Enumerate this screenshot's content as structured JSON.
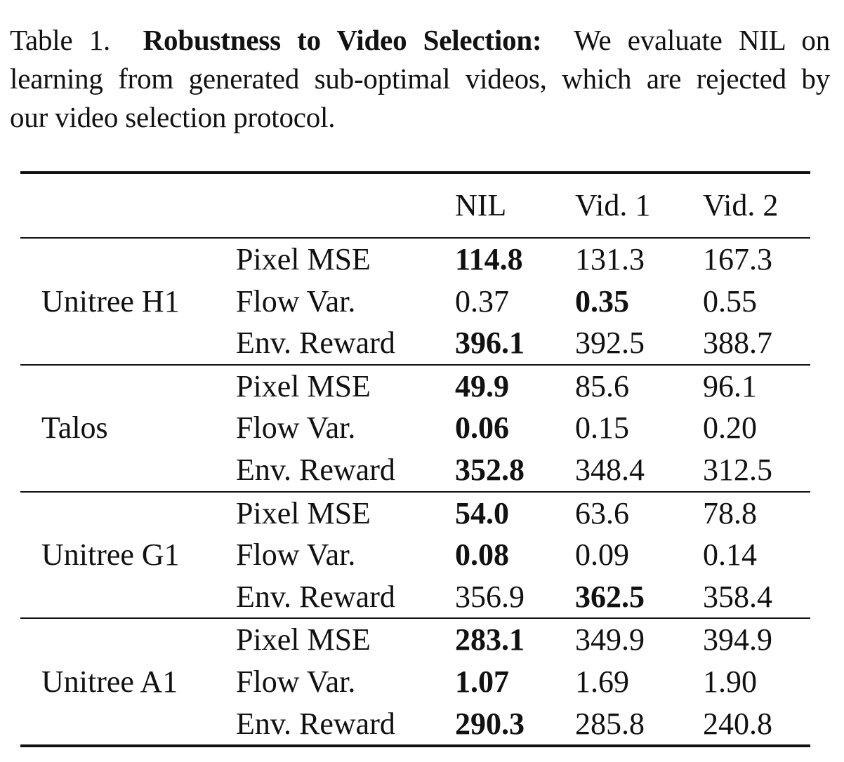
{
  "caption": {
    "label": "Table 1.",
    "title": "Robustness to Video Selection:",
    "line1_rest": "We evaluate NIL on",
    "line2": "learning from generated sub-optimal videos, which are rejected by",
    "line3": "our video selection protocol."
  },
  "table": {
    "headers": [
      "",
      "",
      "NIL",
      "Vid. 1",
      "Vid. 2"
    ],
    "groups": [
      {
        "robot": "Unitree H1",
        "rows": [
          {
            "metric": "Pixel MSE",
            "values": [
              "114.8",
              "131.3",
              "167.3"
            ],
            "bold_index": 0
          },
          {
            "metric": "Flow Var.",
            "values": [
              "0.37",
              "0.35",
              "0.55"
            ],
            "bold_index": 1
          },
          {
            "metric": "Env. Reward",
            "values": [
              "396.1",
              "392.5",
              "388.7"
            ],
            "bold_index": 0
          }
        ]
      },
      {
        "robot": "Talos",
        "rows": [
          {
            "metric": "Pixel MSE",
            "values": [
              "49.9",
              "85.6",
              "96.1"
            ],
            "bold_index": 0
          },
          {
            "metric": "Flow Var.",
            "values": [
              "0.06",
              "0.15",
              "0.20"
            ],
            "bold_index": 0
          },
          {
            "metric": "Env. Reward",
            "values": [
              "352.8",
              "348.4",
              "312.5"
            ],
            "bold_index": 0
          }
        ]
      },
      {
        "robot": "Unitree G1",
        "rows": [
          {
            "metric": "Pixel MSE",
            "values": [
              "54.0",
              "63.6",
              "78.8"
            ],
            "bold_index": 0
          },
          {
            "metric": "Flow Var.",
            "values": [
              "0.08",
              "0.09",
              "0.14"
            ],
            "bold_index": 0
          },
          {
            "metric": "Env. Reward",
            "values": [
              "356.9",
              "362.5",
              "358.4"
            ],
            "bold_index": 1
          }
        ]
      },
      {
        "robot": "Unitree A1",
        "rows": [
          {
            "metric": "Pixel MSE",
            "values": [
              "283.1",
              "349.9",
              "394.9"
            ],
            "bold_index": 0
          },
          {
            "metric": "Flow Var.",
            "values": [
              "1.07",
              "1.69",
              "1.90"
            ],
            "bold_index": 0
          },
          {
            "metric": "Env. Reward",
            "values": [
              "290.3",
              "285.8",
              "240.8"
            ],
            "bold_index": 0
          }
        ]
      }
    ]
  }
}
